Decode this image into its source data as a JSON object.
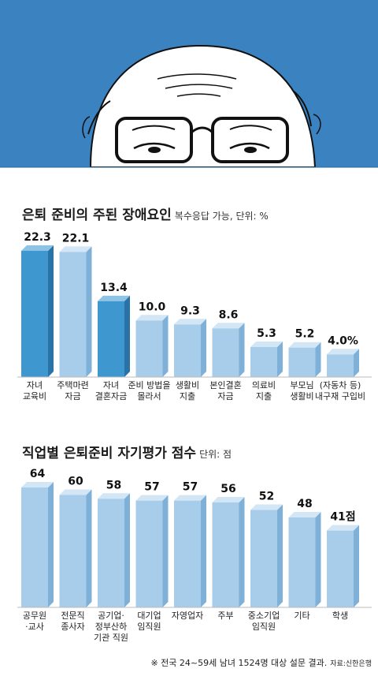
{
  "chart_data": [
    {
      "type": "bar",
      "title": "은퇴 준비의 주된 장애요인",
      "subtitle": "복수응답 가능, 단위: %",
      "categories": [
        [
          "자녀",
          "교육비"
        ],
        [
          "주택마련",
          "자금"
        ],
        [
          "자녀",
          "결혼자금"
        ],
        [
          "준비 방법을",
          "몰라서"
        ],
        [
          "생활비",
          "지출"
        ],
        [
          "본인결혼",
          "자금"
        ],
        [
          "의료비",
          "지출"
        ],
        [
          "부모님",
          "생활비"
        ],
        [
          "(자동차 등)",
          "내구재 구입비"
        ]
      ],
      "values": [
        22.3,
        22.1,
        13.4,
        10.0,
        9.3,
        8.6,
        5.3,
        5.2,
        4.0
      ],
      "value_labels": [
        "22.3",
        "22.1",
        "13.4",
        "10.0",
        "9.3",
        "8.6",
        "5.3",
        "5.2",
        "4.0%"
      ],
      "highlight": [
        true,
        false,
        true,
        false,
        false,
        false,
        false,
        false,
        false
      ],
      "ylim": [
        0,
        22.3
      ]
    },
    {
      "type": "bar",
      "title": "직업별 은퇴준비 자기평가 점수",
      "subtitle": "단위: 점",
      "categories": [
        [
          "공무원",
          "·교사"
        ],
        [
          "전문직",
          "종사자"
        ],
        [
          "공기업·",
          "정부산하",
          "기관 직원"
        ],
        [
          "대기업",
          "임직원"
        ],
        [
          "자영업자"
        ],
        [
          "주부"
        ],
        [
          "중소기업",
          "임직원"
        ],
        [
          "기타"
        ],
        [
          "학생"
        ]
      ],
      "values": [
        64,
        60,
        58,
        57,
        57,
        56,
        52,
        48,
        41
      ],
      "value_labels": [
        "64",
        "60",
        "58",
        "57",
        "57",
        "56",
        "52",
        "48",
        "41점"
      ],
      "ylim": [
        0,
        64
      ]
    }
  ],
  "footer": {
    "note": "※ 전국 24~59세 남녀 1524명 대상 설문 결과.",
    "source": "자료:신한은행"
  },
  "colors": {
    "bar_light": "#a8cdea",
    "bar_light_top": "#d2e6f5",
    "bar_light_side": "#7fb0d8",
    "bar_dark": "#3f97cf",
    "bar_dark_top": "#8cc3e6",
    "bar_dark_side": "#2a73a6",
    "illustration_bg": "#3a83c0"
  }
}
